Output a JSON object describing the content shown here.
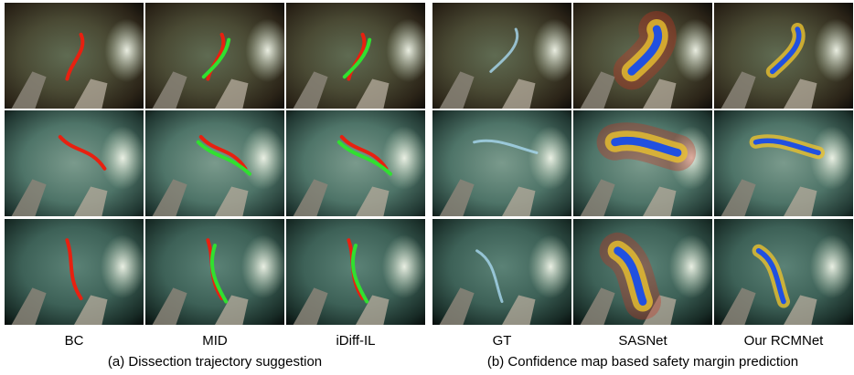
{
  "panels": [
    {
      "caption": "(a) Dissection trajectory suggestion",
      "columns": [
        "BC",
        "MID",
        "iDiff-IL"
      ]
    },
    {
      "caption": "(b) Confidence map based safety margin prediction",
      "columns": [
        "GT",
        "SASNet",
        "Our RCMNet"
      ]
    }
  ]
}
